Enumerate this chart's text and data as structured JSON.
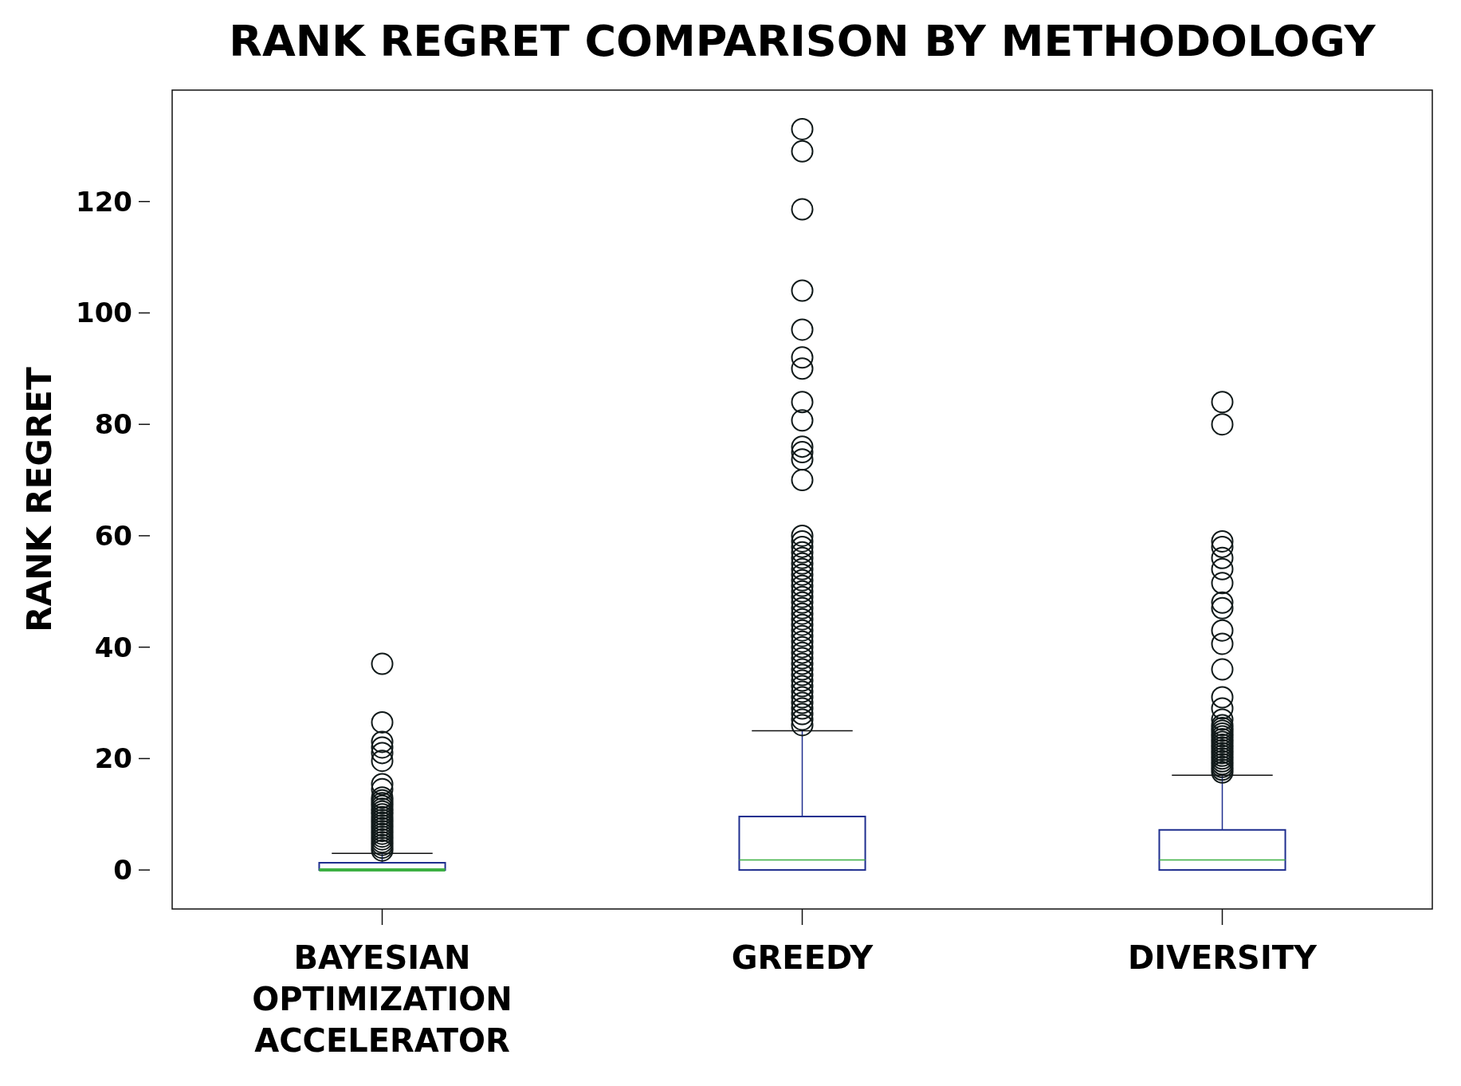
{
  "chart_data": {
    "type": "box",
    "title": "RANK REGRET COMPARISON BY METHODOLOGY",
    "ylabel": "RANK REGRET",
    "categories": [
      "BAYESIAN OPTIMIZATION ACCELERATOR",
      "GREEDY",
      "DIVERSITY"
    ],
    "color": "#1f2f8f",
    "boxes": [
      {
        "low": 0,
        "q1": 0,
        "median": 0,
        "q3": 1.3,
        "high": 3,
        "outliers": [
          3.5,
          4,
          4.5,
          5,
          5.5,
          6,
          6.5,
          7,
          7.5,
          8,
          8.5,
          9,
          9.5,
          10,
          10.5,
          11,
          11.5,
          12,
          12.5,
          13,
          14.5,
          15.4,
          19.6,
          21,
          22,
          23,
          26.5,
          37
        ]
      },
      {
        "low": 0,
        "q1": 0,
        "median": 1.8,
        "q3": 9.6,
        "high": 25,
        "outliers": [
          26,
          27,
          28,
          29,
          30,
          31,
          32,
          33,
          34,
          35,
          36,
          37,
          38,
          39,
          40,
          41,
          42,
          43,
          44,
          45,
          46,
          47,
          48,
          49,
          50,
          51,
          52,
          53,
          54,
          55,
          56,
          57,
          58,
          59,
          60,
          70,
          73.7,
          75,
          76,
          80.7,
          84,
          90,
          92,
          97,
          104,
          118.6,
          129,
          133
        ]
      },
      {
        "low": 0,
        "q1": 0,
        "median": 1.8,
        "q3": 7.2,
        "high": 17,
        "outliers": [
          17.5,
          18,
          18.5,
          19,
          19.5,
          20,
          20.5,
          21,
          21.5,
          22,
          22.5,
          23,
          23.5,
          24,
          24.5,
          25,
          25.5,
          26,
          27,
          29,
          31,
          36,
          40.6,
          43,
          47,
          48,
          51.5,
          54,
          56,
          58,
          59,
          80,
          84
        ]
      }
    ],
    "ylim": [
      -7,
      140
    ],
    "yticks": [
      0,
      20,
      40,
      60,
      80,
      100,
      120
    ],
    "grid": false
  }
}
